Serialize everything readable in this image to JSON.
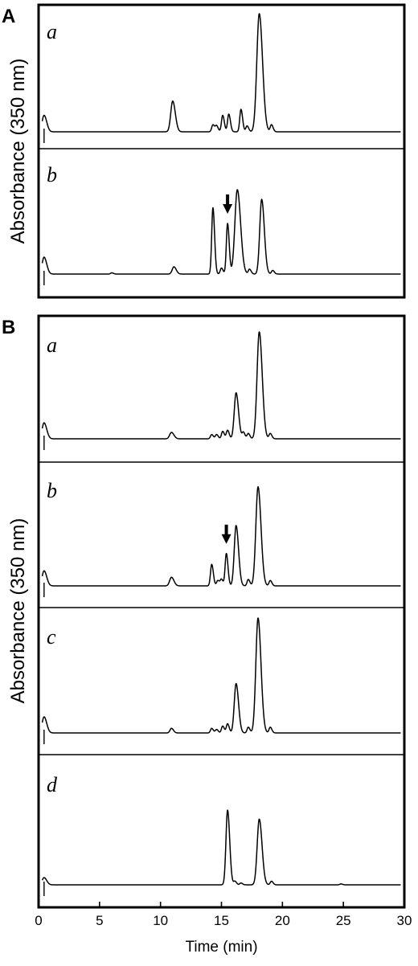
{
  "chart_data": {
    "type": "line",
    "xlabel": "Time (min)",
    "xlim": [
      0,
      30
    ],
    "x_ticks": [
      0,
      5,
      10,
      15,
      20,
      25,
      30
    ],
    "x_tick_labels": [
      "0",
      "5",
      "10",
      "15",
      "20",
      "25",
      "30"
    ],
    "ylabel": "Absorbance (350 nm)",
    "panels": [
      {
        "letter": "A",
        "traces": [
          {
            "label": "a",
            "arrow_at": null,
            "peaks": [
              [
                0.45,
                0.16,
                0.14
              ],
              [
                11.0,
                0.16,
                0.26
              ],
              [
                14.3,
                0.1,
                0.06
              ],
              [
                14.6,
                0.1,
                0.05
              ],
              [
                15.1,
                0.1,
                0.14
              ],
              [
                15.6,
                0.1,
                0.15
              ],
              [
                16.6,
                0.1,
                0.19
              ],
              [
                17.1,
                0.1,
                0.05
              ],
              [
                18.1,
                0.2,
                1.0
              ],
              [
                19.1,
                0.1,
                0.06
              ]
            ]
          },
          {
            "label": "b",
            "arrow_at": 15.5,
            "peaks": [
              [
                0.45,
                0.16,
                0.14
              ],
              [
                6.0,
                0.1,
                0.01
              ],
              [
                11.1,
                0.14,
                0.06
              ],
              [
                14.3,
                0.1,
                0.55
              ],
              [
                15.0,
                0.1,
                0.05
              ],
              [
                15.5,
                0.1,
                0.42
              ],
              [
                16.3,
                0.2,
                0.7
              ],
              [
                17.3,
                0.1,
                0.04
              ],
              [
                18.3,
                0.16,
                0.62
              ],
              [
                19.2,
                0.1,
                0.03
              ]
            ]
          }
        ]
      },
      {
        "letter": "B",
        "traces": [
          {
            "label": "a",
            "arrow_at": null,
            "peaks": [
              [
                0.45,
                0.16,
                0.15
              ],
              [
                10.9,
                0.15,
                0.06
              ],
              [
                14.2,
                0.1,
                0.04
              ],
              [
                14.6,
                0.1,
                0.04
              ],
              [
                15.1,
                0.1,
                0.07
              ],
              [
                15.5,
                0.1,
                0.08
              ],
              [
                16.2,
                0.15,
                0.43
              ],
              [
                16.8,
                0.1,
                0.06
              ],
              [
                17.2,
                0.1,
                0.05
              ],
              [
                18.1,
                0.18,
                1.0
              ],
              [
                19.0,
                0.1,
                0.05
              ]
            ]
          },
          {
            "label": "b",
            "arrow_at": 15.4,
            "peaks": [
              [
                0.45,
                0.16,
                0.14
              ],
              [
                10.9,
                0.15,
                0.08
              ],
              [
                14.2,
                0.1,
                0.2
              ],
              [
                14.7,
                0.1,
                0.05
              ],
              [
                15.0,
                0.1,
                0.06
              ],
              [
                15.4,
                0.1,
                0.3
              ],
              [
                16.2,
                0.15,
                0.56
              ],
              [
                17.2,
                0.1,
                0.06
              ],
              [
                18.0,
                0.18,
                0.92
              ],
              [
                19.0,
                0.1,
                0.05
              ]
            ]
          },
          {
            "label": "c",
            "arrow_at": null,
            "peaks": [
              [
                0.45,
                0.16,
                0.14
              ],
              [
                10.9,
                0.12,
                0.04
              ],
              [
                14.2,
                0.1,
                0.04
              ],
              [
                14.6,
                0.1,
                0.03
              ],
              [
                15.1,
                0.1,
                0.06
              ],
              [
                15.5,
                0.1,
                0.08
              ],
              [
                16.2,
                0.15,
                0.43
              ],
              [
                17.2,
                0.1,
                0.05
              ],
              [
                18.0,
                0.18,
                1.0
              ],
              [
                19.0,
                0.1,
                0.05
              ]
            ]
          },
          {
            "label": "d",
            "arrow_at": null,
            "peaks": [
              [
                0.45,
                0.16,
                0.08
              ],
              [
                15.5,
                0.13,
                0.83
              ],
              [
                16.1,
                0.1,
                0.04
              ],
              [
                16.6,
                0.1,
                0.02
              ],
              [
                18.1,
                0.17,
                0.73
              ],
              [
                19.1,
                0.1,
                0.04
              ],
              [
                24.8,
                0.1,
                0.01
              ]
            ]
          }
        ]
      }
    ]
  }
}
